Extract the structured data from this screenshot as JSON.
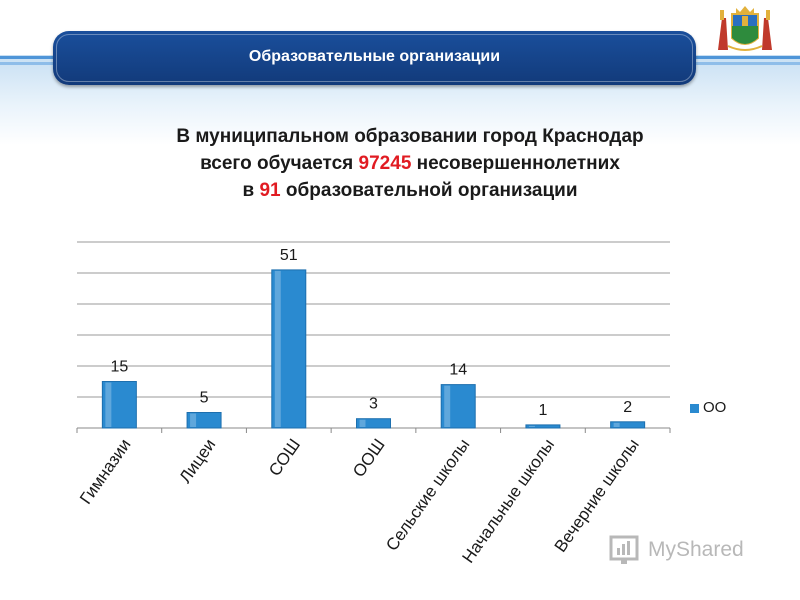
{
  "header": {
    "title": "Образовательные организации"
  },
  "subtitle": {
    "line1": "В муниципальном образовании город Краснодар",
    "line2_prefix": "всего обучается ",
    "line2_number": "97245",
    "line2_suffix": " несовершеннолетних",
    "line3_prefix": "в ",
    "line3_number": "91",
    "line3_suffix": " образовательной организации"
  },
  "colors": {
    "header_bg": "#143f84",
    "bar": "#2a8ad0",
    "highlight": "#e11b22",
    "stripe": "#4a90d6"
  },
  "watermark": {
    "text": "MyShared"
  },
  "chart_data": {
    "type": "bar",
    "categories": [
      "Гимназии",
      "Лицеи",
      "СОШ",
      "ООШ",
      "Сельские школы",
      "Начальные школы",
      "Вечерние школы"
    ],
    "series": [
      {
        "name": "ОО",
        "values": [
          15,
          5,
          51,
          3,
          14,
          1,
          2
        ]
      }
    ],
    "ylim": [
      0,
      60
    ],
    "y_gridlines": [
      0,
      10,
      20,
      30,
      40,
      50,
      60
    ],
    "data_labels": [
      "15",
      "5",
      "51",
      "3",
      "14",
      "1",
      "2"
    ],
    "legend_position": "right",
    "grid": true
  }
}
